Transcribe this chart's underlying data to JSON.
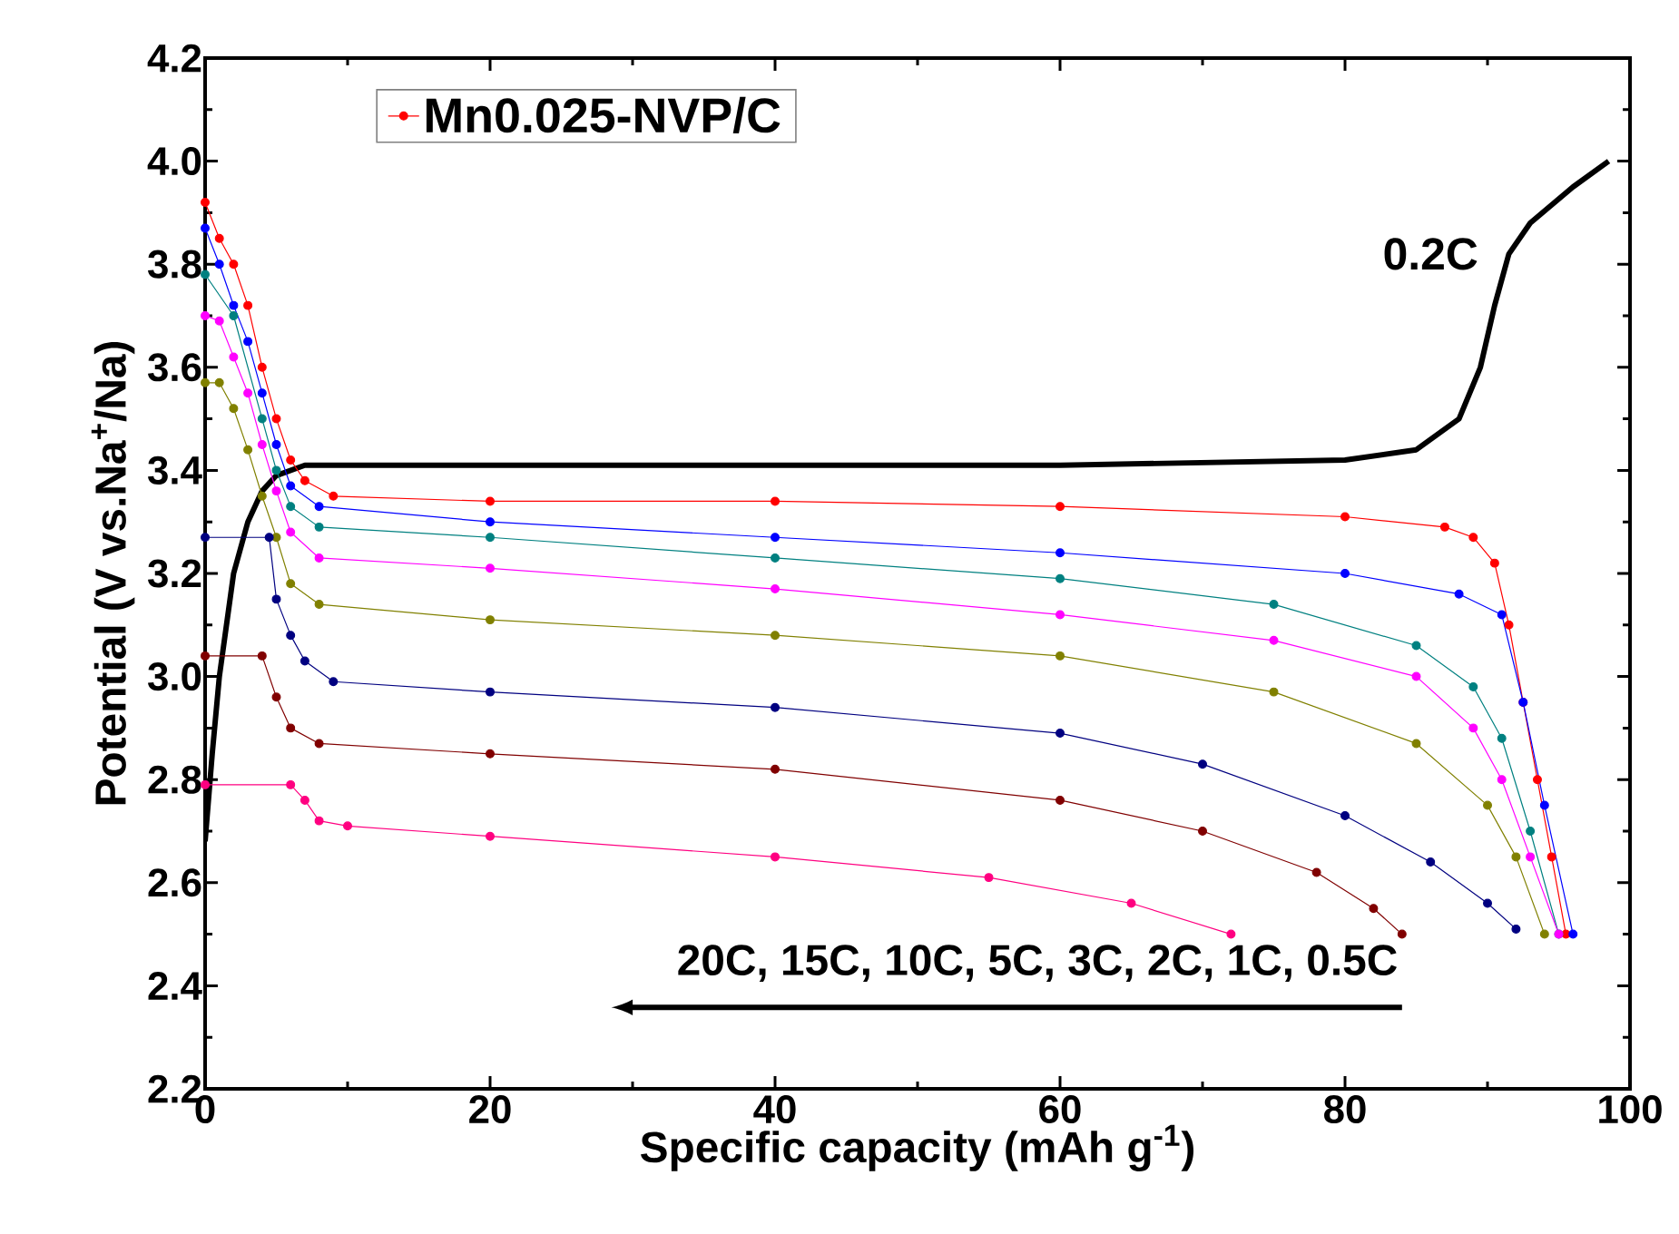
{
  "chart_data": {
    "type": "line",
    "xlabel": "Specific capacity (mAh g$^{-1}$)",
    "ylabel": "Potential (V vs.Na$^{+}$/Na)",
    "xlim": [
      0,
      100
    ],
    "ylim": [
      2.2,
      4.2
    ],
    "xticks": [
      0,
      20,
      40,
      60,
      80,
      100
    ],
    "yticks": [
      2.2,
      2.4,
      2.6,
      2.8,
      {
        "value": 3,
        "label": "3.0"
      },
      3.2,
      3.4,
      3.6,
      3.8,
      {
        "value": 4,
        "label": "4.0"
      },
      4.2
    ],
    "legend": "top left",
    "grid": false,
    "annotations": [
      "0.2C",
      "20C, 15C, 10C, 5C, 3C, 2C, 1C, 0.5C"
    ],
    "series": [
      {
        "color": "#000000",
        "marker": "none",
        "x": [
          0,
          0.5,
          1,
          2,
          3,
          4,
          5,
          7,
          20,
          40,
          60,
          80,
          85,
          88,
          89.5,
          90.5,
          91.5,
          93,
          96,
          98.5
        ],
        "values": [
          2.68,
          2.85,
          3.0,
          3.2,
          3.3,
          3.36,
          3.39,
          3.41,
          3.41,
          3.41,
          3.41,
          3.42,
          3.44,
          3.5,
          3.6,
          3.72,
          3.82,
          3.88,
          3.95,
          4.0
        ]
      },
      {
        "name": "Mn0.025-NVP/C",
        "color": "#ff0000",
        "marker": "circle",
        "x": [
          0,
          1,
          2,
          3,
          4,
          5,
          6,
          7,
          9,
          20,
          40,
          60,
          80,
          87,
          89,
          90.5,
          91.5,
          92.5,
          93.5,
          94.5,
          95.5
        ],
        "values": [
          3.92,
          3.85,
          3.8,
          3.72,
          3.6,
          3.5,
          3.42,
          3.38,
          3.35,
          3.34,
          3.34,
          3.33,
          3.31,
          3.29,
          3.27,
          3.22,
          3.1,
          2.95,
          2.8,
          2.65,
          2.5
        ]
      },
      {
        "color": "#0000ff",
        "marker": "circle",
        "x": [
          0,
          1,
          2,
          3,
          4,
          5,
          6,
          8,
          20,
          40,
          60,
          80,
          88,
          91,
          92.5,
          94,
          96
        ],
        "values": [
          3.87,
          3.8,
          3.72,
          3.65,
          3.55,
          3.45,
          3.37,
          3.33,
          3.3,
          3.27,
          3.24,
          3.2,
          3.16,
          3.12,
          2.95,
          2.75,
          2.5
        ]
      },
      {
        "color": "#008080",
        "marker": "circle",
        "x": [
          0,
          2,
          4,
          5,
          6,
          8,
          20,
          40,
          60,
          75,
          85,
          89,
          91,
          93,
          95
        ],
        "values": [
          3.78,
          3.7,
          3.5,
          3.4,
          3.33,
          3.29,
          3.27,
          3.23,
          3.19,
          3.14,
          3.06,
          2.98,
          2.88,
          2.7,
          2.5
        ]
      },
      {
        "color": "#ff00ff",
        "marker": "circle",
        "x": [
          0,
          1,
          2,
          3,
          4,
          5,
          6,
          8,
          20,
          40,
          60,
          75,
          85,
          89,
          91,
          93,
          95
        ],
        "values": [
          3.7,
          3.69,
          3.62,
          3.55,
          3.45,
          3.36,
          3.28,
          3.23,
          3.21,
          3.17,
          3.12,
          3.07,
          3.0,
          2.9,
          2.8,
          2.65,
          2.5
        ]
      },
      {
        "color": "#808000",
        "marker": "circle",
        "x": [
          0,
          1,
          2,
          3,
          4,
          5,
          6,
          8,
          20,
          40,
          60,
          75,
          85,
          90,
          92,
          94
        ],
        "values": [
          3.57,
          3.57,
          3.52,
          3.44,
          3.35,
          3.27,
          3.18,
          3.14,
          3.11,
          3.08,
          3.04,
          2.97,
          2.87,
          2.75,
          2.65,
          2.5
        ]
      },
      {
        "color": "#000080",
        "marker": "circle",
        "x": [
          0,
          4.5,
          5,
          6,
          7,
          9,
          20,
          40,
          60,
          70,
          80,
          86,
          90,
          92
        ],
        "values": [
          3.27,
          3.27,
          3.15,
          3.08,
          3.03,
          2.99,
          2.97,
          2.94,
          2.89,
          2.83,
          2.73,
          2.64,
          2.56,
          2.51
        ]
      },
      {
        "color": "#800000",
        "marker": "circle",
        "x": [
          0,
          4,
          5,
          6,
          8,
          20,
          40,
          60,
          70,
          78,
          82,
          84
        ],
        "values": [
          3.04,
          3.04,
          2.96,
          2.9,
          2.87,
          2.85,
          2.82,
          2.76,
          2.7,
          2.62,
          2.55,
          2.5
        ]
      },
      {
        "color": "#ff0080",
        "marker": "circle",
        "x": [
          0,
          6,
          7,
          8,
          10,
          20,
          40,
          55,
          65,
          72
        ],
        "values": [
          2.79,
          2.79,
          2.76,
          2.72,
          2.71,
          2.69,
          2.65,
          2.61,
          2.56,
          2.5
        ]
      }
    ]
  }
}
